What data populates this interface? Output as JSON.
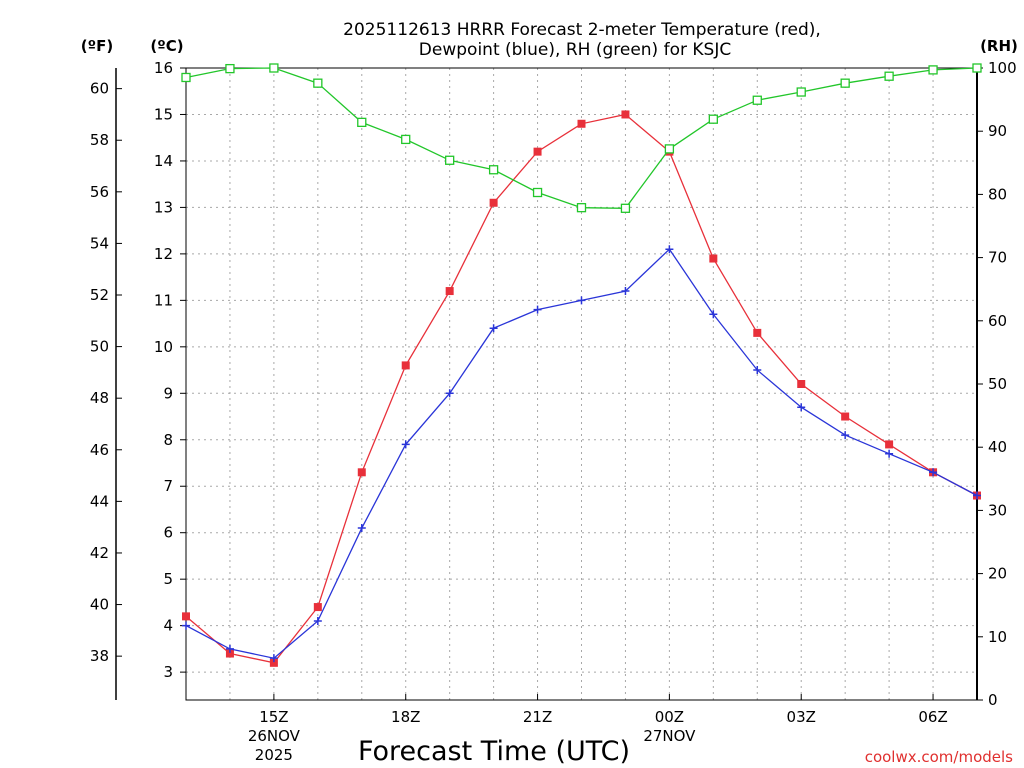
{
  "chart_data": {
    "type": "line",
    "title_line1": "2025112613 HRRR Forecast 2-meter Temperature (red),",
    "title_line2": "Dewpoint (blue), RH (green) for KSJC",
    "xlabel": "Forecast Time (UTC)",
    "credit": "coolwx.com/models",
    "units": {
      "fahrenheit": "(ºF)",
      "celsius": "(ºC)",
      "rh": "(RH)"
    },
    "x_hours": [
      13,
      14,
      15,
      16,
      17,
      18,
      19,
      20,
      21,
      22,
      23,
      24,
      25,
      26,
      27,
      28,
      29,
      30,
      31
    ],
    "x_ticks": [
      {
        "hour": 15,
        "lines": [
          "15Z",
          "26NOV",
          "2025"
        ]
      },
      {
        "hour": 18,
        "lines": [
          "18Z"
        ]
      },
      {
        "hour": 21,
        "lines": [
          "21Z"
        ]
      },
      {
        "hour": 24,
        "lines": [
          "00Z",
          "27NOV"
        ]
      },
      {
        "hour": 27,
        "lines": [
          "03Z"
        ]
      },
      {
        "hour": 30,
        "lines": [
          "06Z"
        ]
      }
    ],
    "celsius_axis": {
      "min": 2.4,
      "max": 16.0,
      "ticks": [
        "3",
        "4",
        "5",
        "6",
        "7",
        "8",
        "9",
        "10",
        "11",
        "12",
        "13",
        "14",
        "15",
        "16"
      ]
    },
    "fahrenheit_axis": {
      "min": 36.3,
      "max": 60.8,
      "ticks": [
        "38",
        "40",
        "42",
        "44",
        "46",
        "48",
        "50",
        "52",
        "54",
        "56",
        "58",
        "60"
      ]
    },
    "rh_axis": {
      "min": 0,
      "max": 100,
      "ticks": [
        "0",
        "10",
        "20",
        "30",
        "40",
        "50",
        "60",
        "70",
        "80",
        "90",
        "100"
      ]
    },
    "series": [
      {
        "name": "2-meter Temperature",
        "color": "#e8303a",
        "axis": "celsius",
        "marker": "square-filled",
        "values": [
          4.2,
          3.4,
          3.2,
          4.4,
          7.3,
          9.6,
          11.2,
          13.1,
          14.2,
          14.8,
          15.0,
          14.2,
          11.9,
          10.3,
          9.2,
          8.5,
          7.9,
          7.3,
          6.8
        ]
      },
      {
        "name": "Dewpoint",
        "color": "#2a35d8",
        "axis": "celsius",
        "marker": "plus",
        "values": [
          4.0,
          3.5,
          3.3,
          4.1,
          6.1,
          7.9,
          9.0,
          10.4,
          10.8,
          11.0,
          11.2,
          12.1,
          10.7,
          9.5,
          8.7,
          8.1,
          7.7,
          7.3,
          6.8
        ]
      },
      {
        "name": "RH",
        "color": "#22c62a",
        "axis": "rh",
        "marker": "square-open",
        "values": [
          98.5,
          99.9,
          100.0,
          97.6,
          91.4,
          88.7,
          85.4,
          83.9,
          80.3,
          77.9,
          77.8,
          87.2,
          91.9,
          94.9,
          96.2,
          97.6,
          98.7,
          99.7,
          100.0
        ]
      }
    ]
  }
}
